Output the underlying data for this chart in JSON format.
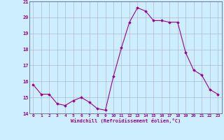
{
  "x": [
    0,
    1,
    2,
    3,
    4,
    5,
    6,
    7,
    8,
    9,
    10,
    11,
    12,
    13,
    14,
    15,
    16,
    17,
    18,
    19,
    20,
    21,
    22,
    23
  ],
  "y": [
    15.8,
    15.2,
    15.2,
    14.6,
    14.5,
    14.8,
    15.0,
    14.7,
    14.3,
    14.2,
    16.3,
    18.1,
    19.7,
    20.6,
    20.4,
    19.8,
    19.8,
    19.7,
    19.7,
    17.8,
    16.7,
    16.4,
    15.5,
    15.2
  ],
  "line_color": "#990099",
  "marker": "D",
  "marker_size": 1.8,
  "bg_color": "#cceeff",
  "grid_color": "#aaaacc",
  "xlabel": "Windchill (Refroidissement éolien,°C)",
  "xlabel_color": "#990099",
  "tick_color": "#990099",
  "label_color": "#990099",
  "ylim": [
    14,
    21
  ],
  "xlim": [
    -0.5,
    23.5
  ],
  "yticks": [
    14,
    15,
    16,
    17,
    18,
    19,
    20,
    21
  ],
  "xticks": [
    0,
    1,
    2,
    3,
    4,
    5,
    6,
    7,
    8,
    9,
    10,
    11,
    12,
    13,
    14,
    15,
    16,
    17,
    18,
    19,
    20,
    21,
    22,
    23
  ],
  "spine_color": "#666699",
  "linewidth": 0.8
}
